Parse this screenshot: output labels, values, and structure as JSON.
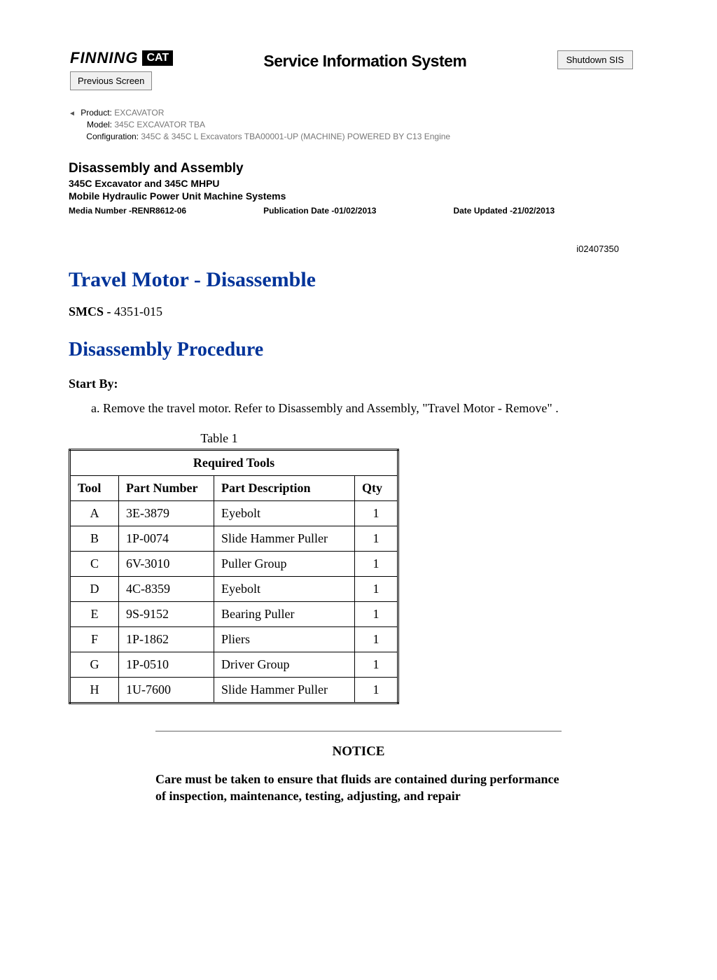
{
  "header": {
    "logo_text": "FINNING",
    "cat_badge": "CAT",
    "previous_button": "Previous Screen",
    "sis_title": "Service Information System",
    "shutdown_button": "Shutdown SIS"
  },
  "meta": {
    "product_label": "Product:",
    "product_value": "EXCAVATOR",
    "model_label": "Model:",
    "model_value": "345C EXCAVATOR TBA",
    "config_label": "Configuration:",
    "config_value": "345C & 345C L Excavators TBA00001-UP (MACHINE) POWERED BY C13 Engine"
  },
  "doc": {
    "h1": "Disassembly and Assembly",
    "h2": "345C Excavator and 345C MHPU",
    "h3": "Mobile Hydraulic Power Unit Machine Systems",
    "media_number": "Media Number -RENR8612-06",
    "pub_date": "Publication Date -01/02/2013",
    "date_updated": "Date Updated -21/02/2013",
    "doc_id": "i02407350"
  },
  "content": {
    "title": "Travel Motor - Disassemble",
    "smcs_label": "SMCS - ",
    "smcs_value": "4351-015",
    "subtitle": "Disassembly Procedure",
    "start_by": "Start By:",
    "step_a": "a.  Remove the travel motor. Refer to Disassembly and Assembly, \"Travel Motor - Remove\" ."
  },
  "table": {
    "caption": "Table 1",
    "title": "Required Tools",
    "columns": [
      "Tool",
      "Part Number",
      "Part Description",
      "Qty"
    ],
    "rows": [
      [
        "A",
        "3E-3879",
        "Eyebolt",
        "1"
      ],
      [
        "B",
        "1P-0074",
        "Slide Hammer Puller",
        "1"
      ],
      [
        "C",
        "6V-3010",
        "Puller Group",
        "1"
      ],
      [
        "D",
        "4C-8359",
        "Eyebolt",
        "1"
      ],
      [
        "E",
        "9S-9152",
        "Bearing Puller",
        "1"
      ],
      [
        "F",
        "1P-1862",
        "Pliers",
        "1"
      ],
      [
        "G",
        "1P-0510",
        "Driver Group",
        "1"
      ],
      [
        "H",
        "1U-7600",
        "Slide Hammer Puller",
        "1"
      ]
    ]
  },
  "notice": {
    "title": "NOTICE",
    "body": "Care must be taken to ensure that fluids are contained during performance of inspection, maintenance, testing, adjusting, and repair"
  },
  "colors": {
    "link_blue": "#003399",
    "meta_grey": "#777777",
    "text": "#000000",
    "background": "#ffffff"
  }
}
